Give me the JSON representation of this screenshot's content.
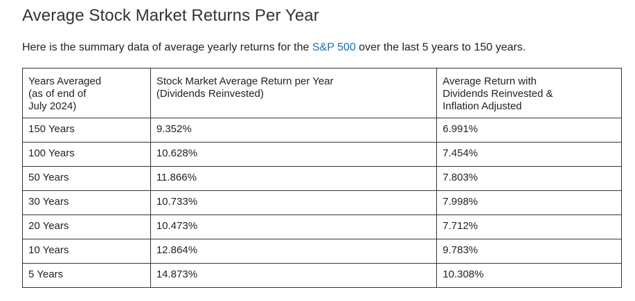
{
  "page": {
    "title": "Average Stock Market Returns Per Year"
  },
  "intro": {
    "before_link": "Here is the summary data of average yearly returns for the ",
    "link_text": "S&P 500",
    "after_link": " over the last 5 years to 150 years.",
    "link_color": "#1a6fb3"
  },
  "table": {
    "headers": [
      [
        "Years Averaged",
        "(as of end of",
        "July 2024)"
      ],
      [
        "Stock Market Average Return per Year",
        "(Dividends Reinvested)"
      ],
      [
        "Average Return with",
        "Dividends Reinvested &",
        "Inflation Adjusted"
      ]
    ],
    "rows": [
      [
        "150 Years",
        "9.352%",
        "6.991%"
      ],
      [
        "100 Years",
        "10.628%",
        "7.454%"
      ],
      [
        "50 Years",
        "11.866%",
        "7.803%"
      ],
      [
        "30 Years",
        "10.733%",
        "7.998%"
      ],
      [
        "20 Years",
        "10.473%",
        "7.712%"
      ],
      [
        "10 Years",
        "12.864%",
        "9.783%"
      ],
      [
        "5 Years",
        "14.873%",
        "10.308%"
      ]
    ]
  }
}
